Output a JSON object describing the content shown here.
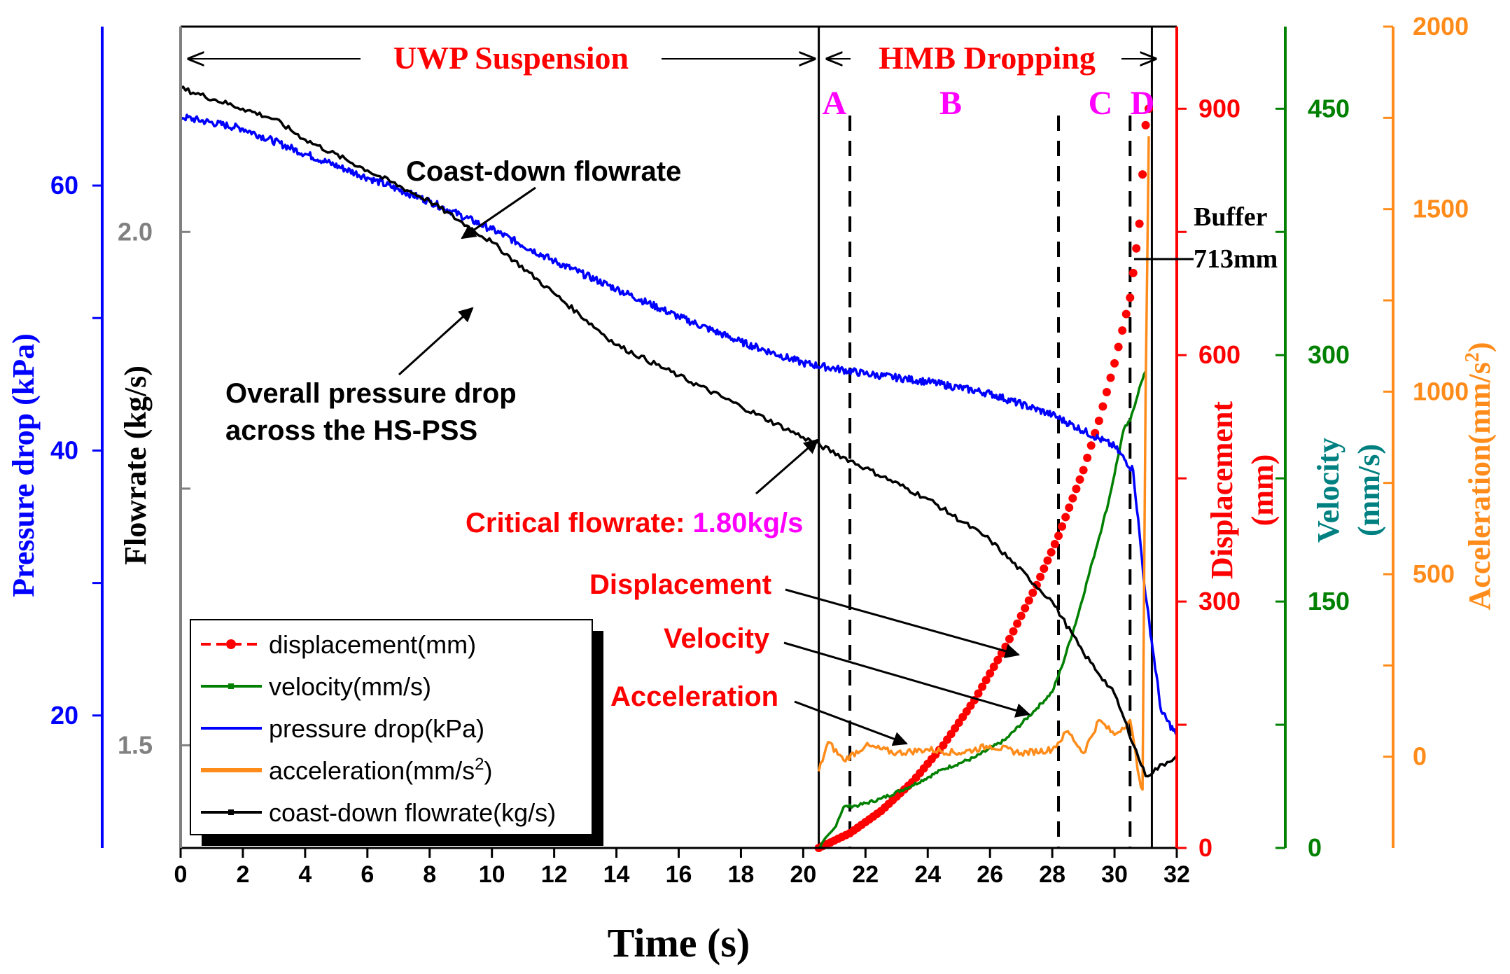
{
  "chart_data": {
    "type": "line",
    "xlabel": "Time (s)",
    "xlim": [
      0,
      32
    ],
    "x_ticks": [
      "0",
      "2",
      "4",
      "6",
      "8",
      "10",
      "12",
      "14",
      "16",
      "18",
      "20",
      "22",
      "24",
      "26",
      "28",
      "30",
      "32"
    ],
    "axes": {
      "pressure": {
        "label": "Pressure drop (kPa)",
        "color": "#0000ff",
        "lim": [
          10,
          72
        ],
        "ticks": [
          "20",
          "40",
          "60"
        ]
      },
      "flowrate": {
        "label": "Flowrate (kg/s)",
        "color": "#000000",
        "axis_color": "#808080",
        "lim": [
          1.4,
          2.2
        ],
        "ticks": [
          "1.5",
          "2.0"
        ]
      },
      "displacement": {
        "label_line1": "Displacement",
        "label_line2": "(mm)",
        "color": "#ff0000",
        "lim": [
          0,
          1000
        ],
        "ticks": [
          "0",
          "300",
          "600",
          "900"
        ]
      },
      "velocity": {
        "label_line1": "Velocity",
        "label_line2": "(mm/s)",
        "color": "#008000",
        "label_color": "#008080",
        "lim": [
          0,
          500
        ],
        "ticks": [
          "0",
          "150",
          "300",
          "450"
        ]
      },
      "acceleration": {
        "label": "Acceleration(mm/s",
        "label_sup": "2",
        "label_end": ")",
        "color": "#ff8c1a",
        "lim": [
          -250,
          2000
        ],
        "ticks": [
          "0",
          "500",
          "1000",
          "1500",
          "2000"
        ]
      }
    },
    "series": [
      {
        "name": "displacement(mm)",
        "axis": "displacement",
        "color": "#ff0000",
        "points": [
          [
            20.5,
            0
          ],
          [
            21.5,
            18
          ],
          [
            22.5,
            45
          ],
          [
            23.5,
            80
          ],
          [
            24.5,
            125
          ],
          [
            25.5,
            180
          ],
          [
            26.5,
            245
          ],
          [
            27.5,
            320
          ],
          [
            28.2,
            380
          ],
          [
            29.0,
            460
          ],
          [
            29.5,
            520
          ],
          [
            30.0,
            590
          ],
          [
            30.5,
            670
          ],
          [
            30.8,
            760
          ],
          [
            31.0,
            880
          ],
          [
            31.1,
            900
          ]
        ]
      },
      {
        "name": "velocity(mm/s)",
        "axis": "velocity",
        "color": "#008000",
        "points": [
          [
            20.5,
            0
          ],
          [
            21.0,
            12
          ],
          [
            21.3,
            25
          ],
          [
            21.8,
            26
          ],
          [
            22.5,
            30
          ],
          [
            23.5,
            38
          ],
          [
            24.5,
            48
          ],
          [
            25.5,
            55
          ],
          [
            26.5,
            66
          ],
          [
            27.5,
            85
          ],
          [
            28.0,
            95
          ],
          [
            28.3,
            110
          ],
          [
            28.8,
            140
          ],
          [
            29.3,
            175
          ],
          [
            29.8,
            210
          ],
          [
            30.3,
            255
          ],
          [
            30.5,
            260
          ],
          [
            30.8,
            280
          ],
          [
            31.0,
            290
          ]
        ]
      },
      {
        "name": "pressure drop(kPa)",
        "axis": "pressure",
        "color": "#0000ff",
        "points": [
          [
            0,
            65.2
          ],
          [
            2,
            64.3
          ],
          [
            4,
            62.4
          ],
          [
            6,
            60.6
          ],
          [
            8,
            58.8
          ],
          [
            10,
            56.7
          ],
          [
            12,
            54.3
          ],
          [
            14,
            52.2
          ],
          [
            16,
            50.1
          ],
          [
            18,
            48.2
          ],
          [
            20,
            46.6
          ],
          [
            22,
            45.8
          ],
          [
            24,
            45.2
          ],
          [
            26,
            44.3
          ],
          [
            28,
            42.7
          ],
          [
            30,
            40.3
          ],
          [
            30.6,
            38.5
          ],
          [
            31.0,
            29.0
          ],
          [
            31.5,
            20.3
          ],
          [
            32,
            18.5
          ]
        ]
      },
      {
        "name": "acceleration(mm/s",
        "name_sup": "2",
        "name_end": ")",
        "axis": "acceleration",
        "color": "#ff8c1a",
        "points": [
          [
            20.5,
            -40
          ],
          [
            20.8,
            40
          ],
          [
            21.3,
            -10
          ],
          [
            22,
            30
          ],
          [
            23,
            10
          ],
          [
            24,
            20
          ],
          [
            25,
            10
          ],
          [
            26,
            30
          ],
          [
            27,
            10
          ],
          [
            28,
            20
          ],
          [
            28.5,
            70
          ],
          [
            29,
            10
          ],
          [
            29.5,
            100
          ],
          [
            30,
            60
          ],
          [
            30.5,
            100
          ],
          [
            30.8,
            -60
          ],
          [
            30.9,
            -90
          ],
          [
            31.0,
            1000
          ],
          [
            31.1,
            1700
          ]
        ]
      },
      {
        "name": "coast-down flowrate(kg/s)",
        "axis": "flowrate",
        "color": "#000000",
        "points": [
          [
            0,
            2.14
          ],
          [
            2,
            2.12
          ],
          [
            3,
            2.11
          ],
          [
            4,
            2.09
          ],
          [
            6,
            2.06
          ],
          [
            8,
            2.03
          ],
          [
            10,
            1.99
          ],
          [
            12,
            1.94
          ],
          [
            14,
            1.89
          ],
          [
            16,
            1.86
          ],
          [
            18,
            1.83
          ],
          [
            20,
            1.8
          ],
          [
            22,
            1.77
          ],
          [
            24,
            1.74
          ],
          [
            26,
            1.7
          ],
          [
            28,
            1.64
          ],
          [
            29,
            1.59
          ],
          [
            30,
            1.55
          ],
          [
            31,
            1.47
          ],
          [
            32,
            1.49
          ]
        ]
      }
    ],
    "annotations": {
      "uwp": "UWP Suspension",
      "hmb": "HMB Dropping",
      "A": "A",
      "B": "B",
      "C": "C",
      "D": "D",
      "coast": "Coast-down flowrate",
      "overall_1": "Overall pressure drop",
      "overall_2": "across the HS-PSS",
      "critical": "Critical flowrate: ",
      "critical_val": "1.80kg/s",
      "disp": "Displacement",
      "vel": "Velocity",
      "acc": "Acceleration",
      "buffer": "Buffer",
      "buffer_val": "713mm"
    },
    "legend_position": "bottom-left"
  }
}
